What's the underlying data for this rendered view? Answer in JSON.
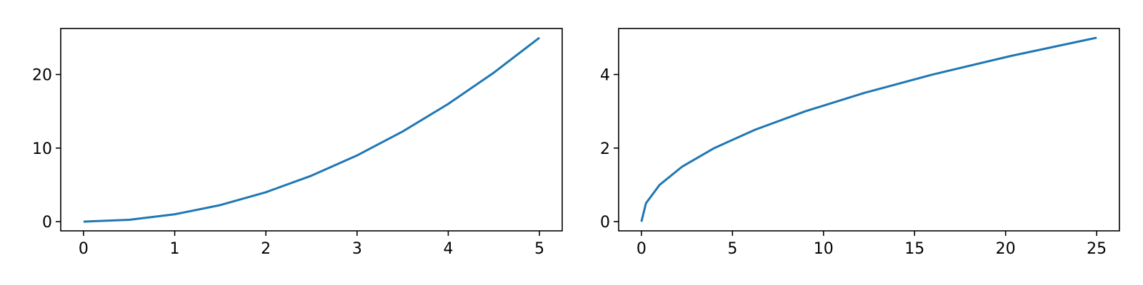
{
  "chart_data": [
    {
      "type": "line",
      "title": "",
      "xlabel": "",
      "ylabel": "",
      "xlim": [
        -0.25,
        5.25
      ],
      "ylim": [
        -1.25,
        26.25
      ],
      "xticks": [
        0,
        1,
        2,
        3,
        4,
        5
      ],
      "yticks": [
        0,
        10,
        20
      ],
      "grid": false,
      "series": [
        {
          "color": "#1f77b4",
          "x": [
            0,
            0.5,
            1,
            1.5,
            2,
            2.5,
            3,
            3.5,
            4,
            4.5,
            5
          ],
          "y": [
            0,
            0.25,
            1,
            2.25,
            4,
            6.25,
            9,
            12.25,
            16,
            20.25,
            25
          ]
        }
      ]
    },
    {
      "type": "line",
      "title": "",
      "xlabel": "",
      "ylabel": "",
      "xlim": [
        -1.25,
        26.25
      ],
      "ylim": [
        -0.25,
        5.25
      ],
      "xticks": [
        0,
        5,
        10,
        15,
        20,
        25
      ],
      "yticks": [
        0,
        2,
        4
      ],
      "grid": false,
      "series": [
        {
          "color": "#1f77b4",
          "x": [
            0,
            0.25,
            1,
            2.25,
            4,
            6.25,
            9,
            12.25,
            16,
            20.25,
            25
          ],
          "y": [
            0,
            0.5,
            1,
            1.5,
            2,
            2.5,
            3,
            3.5,
            4,
            4.5,
            5
          ]
        }
      ]
    }
  ]
}
